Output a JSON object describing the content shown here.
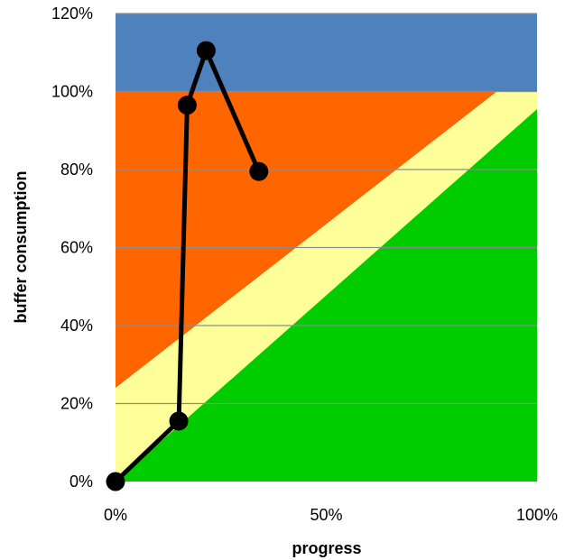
{
  "chart_data": {
    "type": "line",
    "title": "",
    "xlabel": "progress",
    "ylabel": "buffer consumption",
    "xlim": [
      0,
      1
    ],
    "ylim": [
      0,
      1.2
    ],
    "x_ticks": [
      0,
      0.5,
      1
    ],
    "x_tick_labels": [
      "0%",
      "50%",
      "100%"
    ],
    "y_ticks": [
      0,
      0.2,
      0.4,
      0.6,
      0.8,
      1.0,
      1.2
    ],
    "y_tick_labels": [
      "0%",
      "20%",
      "40%",
      "60%",
      "80%",
      "100%",
      "120%"
    ],
    "grid": "horizontal",
    "legend": "none",
    "zones": [
      {
        "name": "blue",
        "color": "#4f81bd",
        "polygon": [
          [
            0,
            1.0
          ],
          [
            1,
            1.0
          ],
          [
            1,
            1.2
          ],
          [
            0,
            1.2
          ]
        ]
      },
      {
        "name": "orange",
        "color": "#ff6600",
        "polygon": [
          [
            0,
            0.24
          ],
          [
            0.905,
            1.0
          ],
          [
            0,
            1.0
          ]
        ]
      },
      {
        "name": "yellow",
        "color": "#ffff99",
        "polygon": [
          [
            0,
            0
          ],
          [
            0,
            0.24
          ],
          [
            0.905,
            1.0
          ],
          [
            1,
            1.0
          ],
          [
            1,
            0.955
          ]
        ]
      },
      {
        "name": "green",
        "color": "#00cc00",
        "polygon": [
          [
            0,
            0
          ],
          [
            1,
            0.955
          ],
          [
            1,
            0
          ]
        ]
      }
    ],
    "series": [
      {
        "color": "#000000",
        "x": [
          0.0,
          0.15,
          0.17,
          0.215,
          0.34
        ],
        "y": [
          0.0,
          0.155,
          0.965,
          1.105,
          0.795
        ]
      }
    ]
  }
}
